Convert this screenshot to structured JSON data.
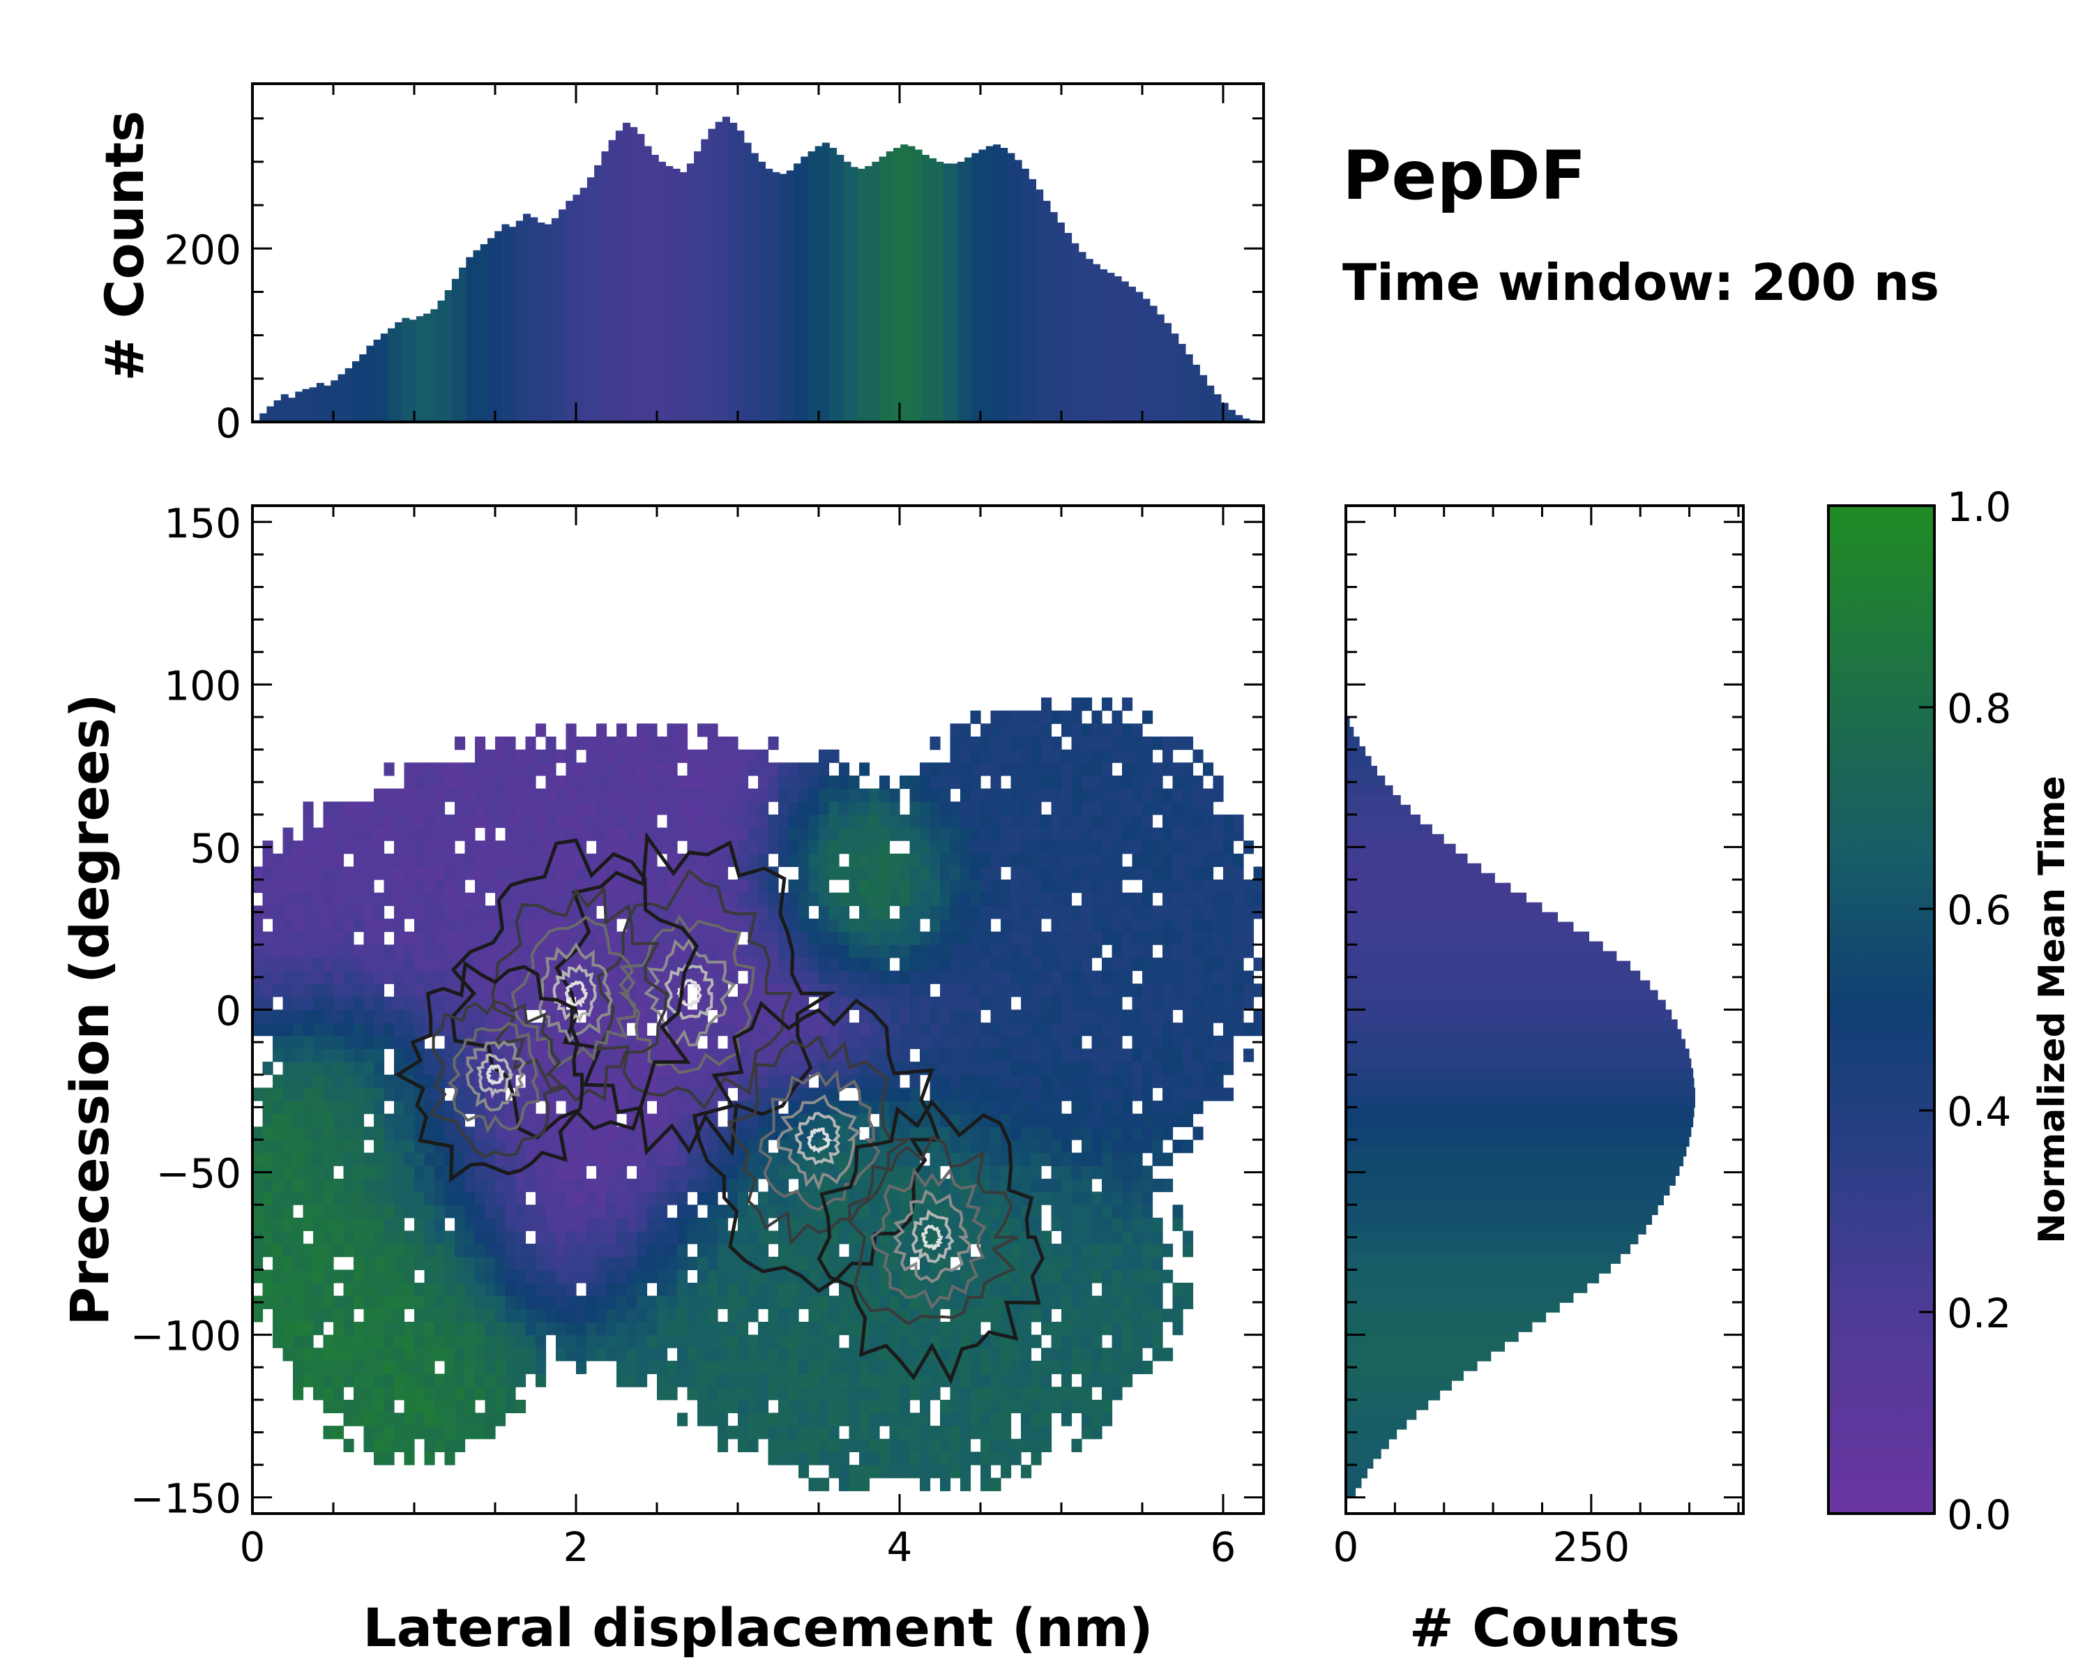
{
  "chart_data": {
    "type": "heatmap",
    "title": "PepDF",
    "subtitle": "Time window: 200 ns",
    "main": {
      "xlabel": "Lateral displacement (nm)",
      "ylabel": "Precession (degrees)",
      "xlim": [
        0,
        6.25
      ],
      "ylim": [
        -155,
        155
      ],
      "xticks": [
        0,
        2,
        4,
        6
      ],
      "xtick_labels": [
        "0",
        "2",
        "4",
        "6"
      ],
      "yticks": [
        150,
        100,
        50,
        0,
        -50,
        -100,
        -150
      ],
      "ytick_labels": [
        "150",
        "100",
        "50",
        "0",
        "−50",
        "−100",
        "−150"
      ],
      "color_regions": [
        {
          "name": "purple-region",
          "x": 2.3,
          "y": 20,
          "rx": 1.9,
          "ry": 40,
          "color": 0.15
        },
        {
          "name": "purple-core",
          "x": 1.8,
          "y": -40,
          "rx": 1.0,
          "ry": 40,
          "color": 0.1
        },
        {
          "name": "green-left",
          "x": 0.8,
          "y": -60,
          "rx": 0.8,
          "ry": 55,
          "color": 0.85
        },
        {
          "name": "green-top",
          "x": 3.8,
          "y": 35,
          "rx": 0.6,
          "ry": 25,
          "color": 0.95
        },
        {
          "name": "teal-bottom",
          "x": 4.0,
          "y": -85,
          "rx": 1.6,
          "ry": 50,
          "color": 0.7
        },
        {
          "name": "blue-right",
          "x": 5.0,
          "y": 20,
          "rx": 1.0,
          "ry": 70,
          "color": 0.45
        }
      ],
      "density_peaks": [
        {
          "x": 2.7,
          "y": 5,
          "level": 1.0
        },
        {
          "x": 2.0,
          "y": 5,
          "level": 0.9
        },
        {
          "x": 3.5,
          "y": -40,
          "level": 0.9
        },
        {
          "x": 4.2,
          "y": -70,
          "level": 0.85
        },
        {
          "x": 1.5,
          "y": -20,
          "level": 0.7
        }
      ]
    },
    "top_hist": {
      "ylabel": "# Counts",
      "ylim": [
        0,
        390
      ],
      "yticks": [
        0,
        200
      ],
      "ytick_labels": [
        "0",
        "200"
      ],
      "x_start": 0.0,
      "x_end": 6.25,
      "counts": [
        2,
        10,
        18,
        25,
        32,
        28,
        35,
        38,
        40,
        45,
        42,
        48,
        55,
        62,
        70,
        78,
        88,
        95,
        102,
        108,
        115,
        120,
        118,
        122,
        125,
        130,
        140,
        152,
        165,
        178,
        190,
        198,
        205,
        212,
        220,
        228,
        225,
        232,
        240,
        236,
        230,
        228,
        235,
        245,
        255,
        262,
        270,
        282,
        296,
        312,
        325,
        336,
        345,
        340,
        332,
        318,
        308,
        300,
        295,
        292,
        288,
        298,
        312,
        326,
        338,
        346,
        352,
        345,
        336,
        322,
        310,
        300,
        292,
        288,
        286,
        290,
        298,
        306,
        312,
        318,
        322,
        316,
        308,
        300,
        294,
        292,
        295,
        300,
        306,
        312,
        316,
        320,
        318,
        314,
        308,
        304,
        300,
        298,
        298,
        300,
        305,
        310,
        314,
        318,
        320,
        316,
        310,
        302,
        292,
        280,
        268,
        255,
        242,
        230,
        218,
        206,
        196,
        188,
        182,
        176,
        172,
        168,
        162,
        156,
        150,
        142,
        134,
        124,
        114,
        102,
        90,
        78,
        66,
        54,
        42,
        32,
        22,
        14,
        8,
        4,
        2,
        1
      ],
      "colors": [
        0.42,
        0.42,
        0.43,
        0.44,
        0.45,
        0.46,
        0.48,
        0.52,
        0.58,
        0.62,
        0.64,
        0.62,
        0.58,
        0.52,
        0.48,
        0.44,
        0.4,
        0.36,
        0.34,
        0.3,
        0.28,
        0.26,
        0.25,
        0.24,
        0.24,
        0.25,
        0.26,
        0.28,
        0.3,
        0.33,
        0.36,
        0.4,
        0.45,
        0.5,
        0.55,
        0.6,
        0.66,
        0.72,
        0.78,
        0.82,
        0.8,
        0.74,
        0.66,
        0.58,
        0.52,
        0.48,
        0.45,
        0.42,
        0.4,
        0.38,
        0.37,
        0.36,
        0.35,
        0.35,
        0.36,
        0.37,
        0.38,
        0.4,
        0.41,
        0.42,
        0.42,
        0.42
      ]
    },
    "right_hist": {
      "xlabel": "# Counts",
      "xlim": [
        0,
        405
      ],
      "xticks": [
        0,
        250
      ],
      "xtick_labels": [
        "0",
        "250"
      ],
      "y_start": 90,
      "y_end": -150,
      "counts": [
        4,
        8,
        14,
        20,
        26,
        32,
        40,
        48,
        56,
        66,
        76,
        88,
        100,
        112,
        124,
        138,
        152,
        168,
        184,
        200,
        216,
        232,
        248,
        262,
        276,
        290,
        300,
        310,
        318,
        326,
        332,
        338,
        342,
        346,
        350,
        352,
        354,
        355,
        356,
        356,
        355,
        354,
        352,
        350,
        347,
        344,
        340,
        336,
        330,
        324,
        318,
        312,
        306,
        298,
        290,
        280,
        270,
        258,
        246,
        232,
        218,
        204,
        190,
        176,
        162,
        148,
        134,
        120,
        108,
        96,
        84,
        72,
        62,
        52,
        44,
        36,
        28,
        22,
        16,
        10
      ],
      "colors": [
        0.4,
        0.38,
        0.36,
        0.34,
        0.32,
        0.3,
        0.28,
        0.27,
        0.26,
        0.25,
        0.25,
        0.25,
        0.26,
        0.27,
        0.28,
        0.29,
        0.3,
        0.31,
        0.32,
        0.33,
        0.35,
        0.37,
        0.4,
        0.43,
        0.46,
        0.49,
        0.52,
        0.54,
        0.55,
        0.56,
        0.57,
        0.58,
        0.6,
        0.62,
        0.64,
        0.66,
        0.67,
        0.68,
        0.69,
        0.7,
        0.7,
        0.7,
        0.69,
        0.68,
        0.67,
        0.66,
        0.65,
        0.64,
        0.63,
        0.62
      ]
    },
    "colorbar": {
      "label": "Normalized Mean Time",
      "range": [
        0.0,
        1.0
      ],
      "ticks": [
        0.0,
        0.2,
        0.4,
        0.6,
        0.8,
        1.0
      ],
      "tick_labels": [
        "0.0",
        "0.2",
        "0.4",
        "0.6",
        "0.8",
        "1.0"
      ],
      "stops": [
        {
          "value": 0.0,
          "color": "#6a36a0"
        },
        {
          "value": 0.2,
          "color": "#4e3b97"
        },
        {
          "value": 0.35,
          "color": "#2b3f86"
        },
        {
          "value": 0.5,
          "color": "#103f73"
        },
        {
          "value": 0.65,
          "color": "#175c68"
        },
        {
          "value": 0.8,
          "color": "#1d6e4a"
        },
        {
          "value": 1.0,
          "color": "#218b24"
        }
      ]
    }
  }
}
